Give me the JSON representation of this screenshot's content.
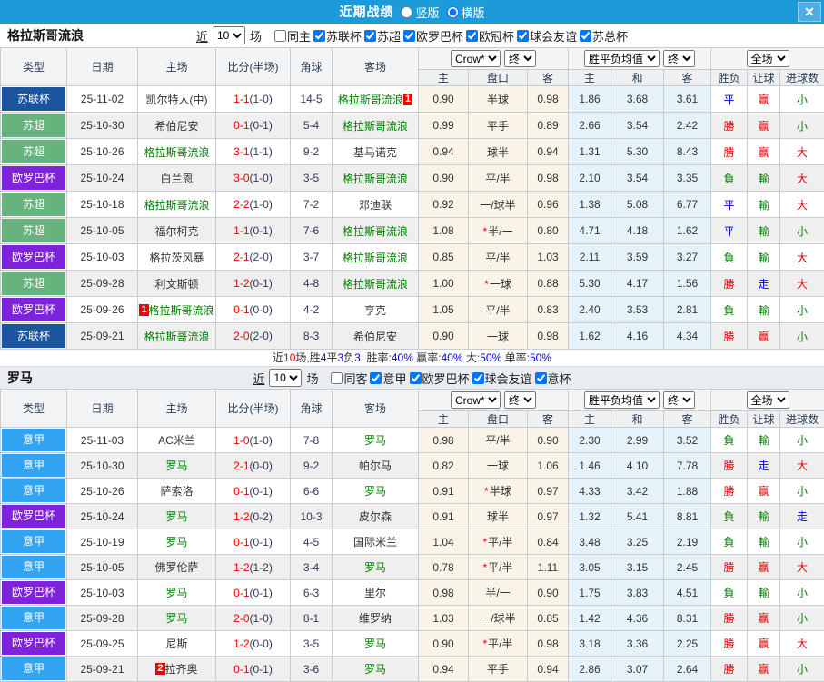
{
  "titlebar": {
    "title": "近期战绩",
    "layout_radios": [
      {
        "label": "竖版",
        "selected": false
      },
      {
        "label": "横版",
        "selected": true
      }
    ],
    "close_icon": "✕"
  },
  "symbols": {
    "handicap_star": "*"
  },
  "colors": {
    "titlebar_bg": "#1D9BD8",
    "type_colors": {
      "苏联杯": "#1B55A0",
      "苏超": "#66B37E",
      "欧罗巴杯": "#7E22DC",
      "意甲": "#31A3F0"
    },
    "result_colors": {
      "勝": "#E60000",
      "負": "#008000",
      "平": "#0000EE",
      "赢": "#E60000",
      "輸": "#008000",
      "走": "#0000EE",
      "大": "#E60000",
      "小": "#008000"
    },
    "team_green": "#008000",
    "score_red": "#EE0000"
  },
  "table_header": {
    "static_cols": [
      "类型",
      "日期",
      "主场",
      "比分(半场)",
      "角球",
      "客场"
    ],
    "odds_selects": [
      "Crow*",
      "终"
    ],
    "odds_cols": [
      "主",
      "盘口",
      "客"
    ],
    "avg_selects": [
      "胜平负均值",
      "终"
    ],
    "avg_cols": [
      "主",
      "和",
      "客"
    ],
    "result_select": "全场",
    "result_cols": [
      "胜负",
      "让球",
      "进球数"
    ]
  },
  "sections": [
    {
      "team": "格拉斯哥流浪",
      "filter": {
        "near_label": "近",
        "count": "10",
        "unit_label": "场",
        "same_label": "同主",
        "same_checked": false,
        "leagues": [
          "苏联杯",
          "苏超",
          "欧罗巴杯",
          "欧冠杯",
          "球会友谊",
          "苏总杯"
        ]
      },
      "rows": [
        {
          "type": "苏联杯",
          "date": "25-11-02",
          "home": "凯尔特人(中)",
          "home_green": false,
          "home_badge": "",
          "home_badge_pos": "",
          "score": "1-1",
          "half": "(1-0)",
          "corners": "14-5",
          "away": "格拉斯哥流浪",
          "away_green": true,
          "away_badge": "1",
          "away_badge_pos": "after",
          "odds": [
            "0.90",
            "半球",
            "0.98"
          ],
          "handicap_star": false,
          "avg": [
            "1.86",
            "3.68",
            "3.61"
          ],
          "outcome": "平",
          "handicap_outcome": "赢",
          "goals_outcome": "小"
        },
        {
          "type": "苏超",
          "date": "25-10-30",
          "home": "希伯尼安",
          "home_green": false,
          "home_badge": "",
          "home_badge_pos": "",
          "score": "0-1",
          "half": "(0-1)",
          "corners": "5-4",
          "away": "格拉斯哥流浪",
          "away_green": true,
          "away_badge": "",
          "away_badge_pos": "",
          "odds": [
            "0.99",
            "平手",
            "0.89"
          ],
          "handicap_star": false,
          "avg": [
            "2.66",
            "3.54",
            "2.42"
          ],
          "outcome": "勝",
          "handicap_outcome": "赢",
          "goals_outcome": "小"
        },
        {
          "type": "苏超",
          "date": "25-10-26",
          "home": "格拉斯哥流浪",
          "home_green": true,
          "home_badge": "",
          "home_badge_pos": "",
          "score": "3-1",
          "half": "(1-1)",
          "corners": "9-2",
          "away": "基马诺克",
          "away_green": false,
          "away_badge": "",
          "away_badge_pos": "",
          "odds": [
            "0.94",
            "球半",
            "0.94"
          ],
          "handicap_star": false,
          "avg": [
            "1.31",
            "5.30",
            "8.43"
          ],
          "outcome": "勝",
          "handicap_outcome": "赢",
          "goals_outcome": "大"
        },
        {
          "type": "欧罗巴杯",
          "date": "25-10-24",
          "home": "白兰恩",
          "home_green": false,
          "home_badge": "",
          "home_badge_pos": "",
          "score": "3-0",
          "half": "(1-0)",
          "corners": "3-5",
          "away": "格拉斯哥流浪",
          "away_green": true,
          "away_badge": "",
          "away_badge_pos": "",
          "odds": [
            "0.90",
            "平/半",
            "0.98"
          ],
          "handicap_star": false,
          "avg": [
            "2.10",
            "3.54",
            "3.35"
          ],
          "outcome": "負",
          "handicap_outcome": "輸",
          "goals_outcome": "大"
        },
        {
          "type": "苏超",
          "date": "25-10-18",
          "home": "格拉斯哥流浪",
          "home_green": true,
          "home_badge": "",
          "home_badge_pos": "",
          "score": "2-2",
          "half": "(1-0)",
          "corners": "7-2",
          "away": "邓迪联",
          "away_green": false,
          "away_badge": "",
          "away_badge_pos": "",
          "odds": [
            "0.92",
            "一/球半",
            "0.96"
          ],
          "handicap_star": false,
          "avg": [
            "1.38",
            "5.08",
            "6.77"
          ],
          "outcome": "平",
          "handicap_outcome": "輸",
          "goals_outcome": "大"
        },
        {
          "type": "苏超",
          "date": "25-10-05",
          "home": "福尔柯克",
          "home_green": false,
          "home_badge": "",
          "home_badge_pos": "",
          "score": "1-1",
          "half": "(0-1)",
          "corners": "7-6",
          "away": "格拉斯哥流浪",
          "away_green": true,
          "away_badge": "",
          "away_badge_pos": "",
          "odds": [
            "1.08",
            "半/一",
            "0.80"
          ],
          "handicap_star": true,
          "avg": [
            "4.71",
            "4.18",
            "1.62"
          ],
          "outcome": "平",
          "handicap_outcome": "輸",
          "goals_outcome": "小"
        },
        {
          "type": "欧罗巴杯",
          "date": "25-10-03",
          "home": "格拉茨风暴",
          "home_green": false,
          "home_badge": "",
          "home_badge_pos": "",
          "score": "2-1",
          "half": "(2-0)",
          "corners": "3-7",
          "away": "格拉斯哥流浪",
          "away_green": true,
          "away_badge": "",
          "away_badge_pos": "",
          "odds": [
            "0.85",
            "平/半",
            "1.03"
          ],
          "handicap_star": false,
          "avg": [
            "2.11",
            "3.59",
            "3.27"
          ],
          "outcome": "負",
          "handicap_outcome": "輸",
          "goals_outcome": "大"
        },
        {
          "type": "苏超",
          "date": "25-09-28",
          "home": "利文斯顿",
          "home_green": false,
          "home_badge": "",
          "home_badge_pos": "",
          "score": "1-2",
          "half": "(0-1)",
          "corners": "4-8",
          "away": "格拉斯哥流浪",
          "away_green": true,
          "away_badge": "",
          "away_badge_pos": "",
          "odds": [
            "1.00",
            "一球",
            "0.88"
          ],
          "handicap_star": true,
          "avg": [
            "5.30",
            "4.17",
            "1.56"
          ],
          "outcome": "勝",
          "handicap_outcome": "走",
          "goals_outcome": "大"
        },
        {
          "type": "欧罗巴杯",
          "date": "25-09-26",
          "home": "格拉斯哥流浪",
          "home_green": true,
          "home_badge": "1",
          "home_badge_pos": "before",
          "score": "0-1",
          "half": "(0-0)",
          "corners": "4-2",
          "away": "亨克",
          "away_green": false,
          "away_badge": "",
          "away_badge_pos": "",
          "odds": [
            "1.05",
            "平/半",
            "0.83"
          ],
          "handicap_star": false,
          "avg": [
            "2.40",
            "3.53",
            "2.81"
          ],
          "outcome": "負",
          "handicap_outcome": "輸",
          "goals_outcome": "小"
        },
        {
          "type": "苏联杯",
          "date": "25-09-21",
          "home": "格拉斯哥流浪",
          "home_green": true,
          "home_badge": "",
          "home_badge_pos": "",
          "score": "2-0",
          "half": "(2-0)",
          "corners": "8-3",
          "away": "希伯尼安",
          "away_green": false,
          "away_badge": "",
          "away_badge_pos": "",
          "odds": [
            "0.90",
            "一球",
            "0.98"
          ],
          "handicap_star": false,
          "avg": [
            "1.62",
            "4.16",
            "4.34"
          ],
          "outcome": "勝",
          "handicap_outcome": "赢",
          "goals_outcome": "小"
        }
      ],
      "summary": [
        [
          "近",
          "#333333"
        ],
        [
          "10",
          "#EE0000"
        ],
        [
          "场,胜",
          "#333333"
        ],
        [
          "4",
          "#0000EE"
        ],
        [
          "平",
          "#333333"
        ],
        [
          "3",
          "#0000EE"
        ],
        [
          "负",
          "#333333"
        ],
        [
          "3",
          "#0000EE"
        ],
        [
          ", 胜率:",
          "#333333"
        ],
        [
          "40%",
          "#0000EE"
        ],
        [
          " 赢率:",
          "#333333"
        ],
        [
          "40%",
          "#0000EE"
        ],
        [
          " 大:",
          "#333333"
        ],
        [
          "50%",
          "#0000EE"
        ],
        [
          " 单率:",
          "#333333"
        ],
        [
          "50%",
          "#0000EE"
        ]
      ]
    },
    {
      "team": "罗马",
      "filter": {
        "near_label": "近",
        "count": "10",
        "unit_label": "场",
        "same_label": "同客",
        "same_checked": false,
        "leagues": [
          "意甲",
          "欧罗巴杯",
          "球会友谊",
          "意杯"
        ]
      },
      "rows": [
        {
          "type": "意甲",
          "date": "25-11-03",
          "home": "AC米兰",
          "home_green": false,
          "home_badge": "",
          "home_badge_pos": "",
          "score": "1-0",
          "half": "(1-0)",
          "corners": "7-8",
          "away": "罗马",
          "away_green": true,
          "away_badge": "",
          "away_badge_pos": "",
          "odds": [
            "0.98",
            "平/半",
            "0.90"
          ],
          "handicap_star": false,
          "avg": [
            "2.30",
            "2.99",
            "3.52"
          ],
          "outcome": "負",
          "handicap_outcome": "輸",
          "goals_outcome": "小"
        },
        {
          "type": "意甲",
          "date": "25-10-30",
          "home": "罗马",
          "home_green": true,
          "home_badge": "",
          "home_badge_pos": "",
          "score": "2-1",
          "half": "(0-0)",
          "corners": "9-2",
          "away": "帕尔马",
          "away_green": false,
          "away_badge": "",
          "away_badge_pos": "",
          "odds": [
            "0.82",
            "一球",
            "1.06"
          ],
          "handicap_star": false,
          "avg": [
            "1.46",
            "4.10",
            "7.78"
          ],
          "outcome": "勝",
          "handicap_outcome": "走",
          "goals_outcome": "大"
        },
        {
          "type": "意甲",
          "date": "25-10-26",
          "home": "萨索洛",
          "home_green": false,
          "home_badge": "",
          "home_badge_pos": "",
          "score": "0-1",
          "half": "(0-1)",
          "corners": "6-6",
          "away": "罗马",
          "away_green": true,
          "away_badge": "",
          "away_badge_pos": "",
          "odds": [
            "0.91",
            "半球",
            "0.97"
          ],
          "handicap_star": true,
          "avg": [
            "4.33",
            "3.42",
            "1.88"
          ],
          "outcome": "勝",
          "handicap_outcome": "赢",
          "goals_outcome": "小"
        },
        {
          "type": "欧罗巴杯",
          "date": "25-10-24",
          "home": "罗马",
          "home_green": true,
          "home_badge": "",
          "home_badge_pos": "",
          "score": "1-2",
          "half": "(0-2)",
          "corners": "10-3",
          "away": "皮尔森",
          "away_green": false,
          "away_badge": "",
          "away_badge_pos": "",
          "odds": [
            "0.91",
            "球半",
            "0.97"
          ],
          "handicap_star": false,
          "avg": [
            "1.32",
            "5.41",
            "8.81"
          ],
          "outcome": "負",
          "handicap_outcome": "輸",
          "goals_outcome": "走"
        },
        {
          "type": "意甲",
          "date": "25-10-19",
          "home": "罗马",
          "home_green": true,
          "home_badge": "",
          "home_badge_pos": "",
          "score": "0-1",
          "half": "(0-1)",
          "corners": "4-5",
          "away": "国际米兰",
          "away_green": false,
          "away_badge": "",
          "away_badge_pos": "",
          "odds": [
            "1.04",
            "平/半",
            "0.84"
          ],
          "handicap_star": true,
          "avg": [
            "3.48",
            "3.25",
            "2.19"
          ],
          "outcome": "負",
          "handicap_outcome": "輸",
          "goals_outcome": "小"
        },
        {
          "type": "意甲",
          "date": "25-10-05",
          "home": "佛罗伦萨",
          "home_green": false,
          "home_badge": "",
          "home_badge_pos": "",
          "score": "1-2",
          "half": "(1-2)",
          "corners": "3-4",
          "away": "罗马",
          "away_green": true,
          "away_badge": "",
          "away_badge_pos": "",
          "odds": [
            "0.78",
            "平/半",
            "1.11"
          ],
          "handicap_star": true,
          "avg": [
            "3.05",
            "3.15",
            "2.45"
          ],
          "outcome": "勝",
          "handicap_outcome": "赢",
          "goals_outcome": "大"
        },
        {
          "type": "欧罗巴杯",
          "date": "25-10-03",
          "home": "罗马",
          "home_green": true,
          "home_badge": "",
          "home_badge_pos": "",
          "score": "0-1",
          "half": "(0-1)",
          "corners": "6-3",
          "away": "里尔",
          "away_green": false,
          "away_badge": "",
          "away_badge_pos": "",
          "odds": [
            "0.98",
            "半/一",
            "0.90"
          ],
          "handicap_star": false,
          "avg": [
            "1.75",
            "3.83",
            "4.51"
          ],
          "outcome": "負",
          "handicap_outcome": "輸",
          "goals_outcome": "小"
        },
        {
          "type": "意甲",
          "date": "25-09-28",
          "home": "罗马",
          "home_green": true,
          "home_badge": "",
          "home_badge_pos": "",
          "score": "2-0",
          "half": "(1-0)",
          "corners": "8-1",
          "away": "维罗纳",
          "away_green": false,
          "away_badge": "",
          "away_badge_pos": "",
          "odds": [
            "1.03",
            "一/球半",
            "0.85"
          ],
          "handicap_star": false,
          "avg": [
            "1.42",
            "4.36",
            "8.31"
          ],
          "outcome": "勝",
          "handicap_outcome": "赢",
          "goals_outcome": "小"
        },
        {
          "type": "欧罗巴杯",
          "date": "25-09-25",
          "home": "尼斯",
          "home_green": false,
          "home_badge": "",
          "home_badge_pos": "",
          "score": "1-2",
          "half": "(0-0)",
          "corners": "3-5",
          "away": "罗马",
          "away_green": true,
          "away_badge": "",
          "away_badge_pos": "",
          "odds": [
            "0.90",
            "平/半",
            "0.98"
          ],
          "handicap_star": true,
          "avg": [
            "3.18",
            "3.36",
            "2.25"
          ],
          "outcome": "勝",
          "handicap_outcome": "赢",
          "goals_outcome": "大"
        },
        {
          "type": "意甲",
          "date": "25-09-21",
          "home": "拉齐奥",
          "home_green": false,
          "home_badge": "2",
          "home_badge_pos": "before",
          "score": "0-1",
          "half": "(0-1)",
          "corners": "3-6",
          "away": "罗马",
          "away_green": true,
          "away_badge": "",
          "away_badge_pos": "",
          "odds": [
            "0.94",
            "平手",
            "0.94"
          ],
          "handicap_star": false,
          "avg": [
            "2.86",
            "3.07",
            "2.64"
          ],
          "outcome": "勝",
          "handicap_outcome": "赢",
          "goals_outcome": "小"
        }
      ],
      "summary": null
    }
  ]
}
